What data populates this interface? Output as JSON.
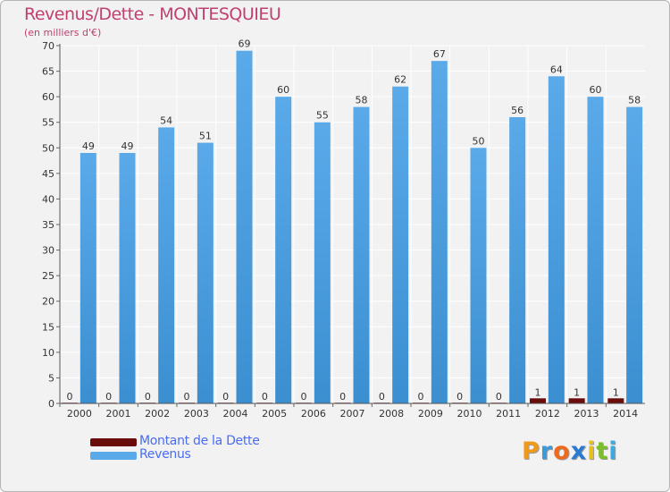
{
  "title": "Revenus/Dette - MONTESQUIEU",
  "subtitle": "(en milliers d'€)",
  "colors": {
    "background": "#f2f2f2",
    "title": "#c04070",
    "grid": "#ffffff",
    "debt": "#6b0c0c",
    "revenue": "#5aaaea",
    "revenue_dark": "#3b8fd0",
    "legend_text": "#4a6cf0"
  },
  "chart_data": {
    "type": "bar",
    "title": "Revenus/Dette - MONTESQUIEU",
    "ylabel": "(en milliers d'€)",
    "xlabel": "",
    "categories": [
      "2000",
      "2001",
      "2002",
      "2003",
      "2004",
      "2005",
      "2006",
      "2007",
      "2008",
      "2009",
      "2010",
      "2011",
      "2012",
      "2013",
      "2014"
    ],
    "series": [
      {
        "name": "Montant de la Dette",
        "values": [
          0,
          0,
          0,
          0,
          0,
          0,
          0,
          0,
          0,
          0,
          0,
          0,
          1,
          1,
          1
        ]
      },
      {
        "name": "Revenus",
        "values": [
          49,
          49,
          54,
          51,
          69,
          60,
          55,
          58,
          62,
          67,
          50,
          56,
          64,
          60,
          58
        ]
      }
    ],
    "ylim": [
      0,
      70
    ],
    "yticks": [
      0,
      5,
      10,
      15,
      20,
      25,
      30,
      35,
      40,
      45,
      50,
      55,
      60,
      65,
      70
    ],
    "grid": true,
    "legend": "bottom-left"
  },
  "legend": {
    "items": [
      {
        "label": "Montant de la Dette",
        "color": "#6b0c0c"
      },
      {
        "label": "Revenus",
        "color": "#5aaaea"
      }
    ]
  },
  "logo": {
    "letters": [
      {
        "ch": "P",
        "color": "#f09a1c"
      },
      {
        "ch": "r",
        "color": "#3a9ad8"
      },
      {
        "ch": "o",
        "color": "#f06a1c"
      },
      {
        "ch": "x",
        "color": "#2a7ad0"
      },
      {
        "ch": "i",
        "color": "#e8c01c"
      },
      {
        "ch": "t",
        "color": "#7cbf2c"
      },
      {
        "ch": "i",
        "color": "#3aaae0"
      }
    ]
  }
}
